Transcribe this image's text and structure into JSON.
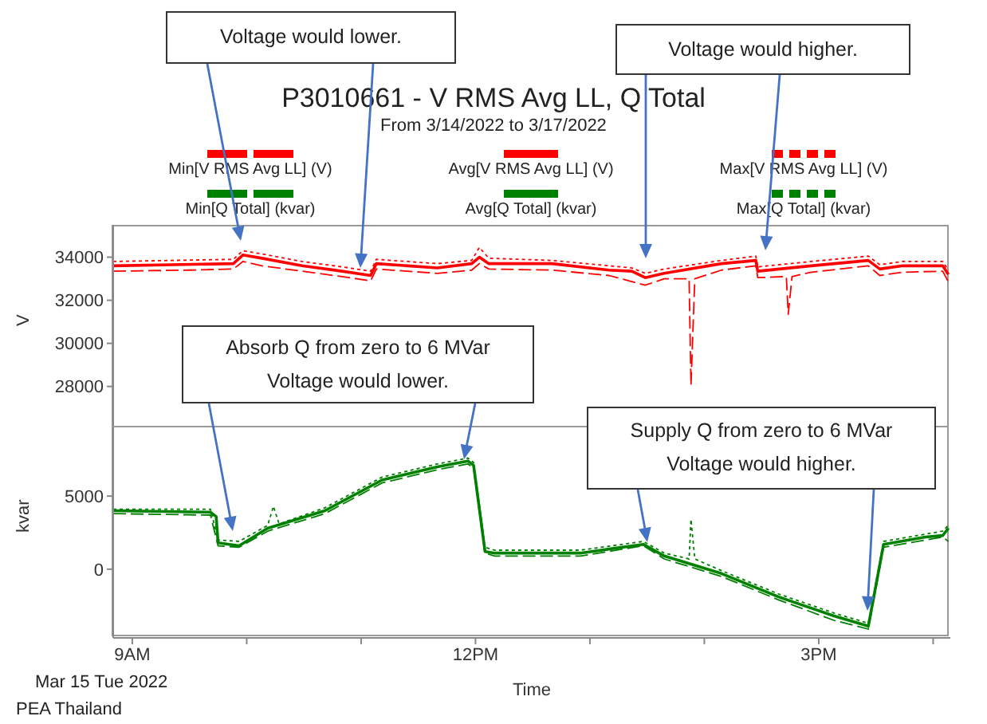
{
  "chart_data": [
    {
      "type": "line",
      "title": "P3010661 - V RMS Avg LL, Q Total",
      "subtitle": "From 3/14/2022 to 3/17/2022",
      "ylabel": "V",
      "legend": "top",
      "tick_labels": "y",
      "xlim": [
        "2022-03-15T08:50",
        "2022-03-15T16:09"
      ],
      "ylim": [
        26100,
        35500
      ],
      "yticks": [
        28000,
        30000,
        32000,
        34000
      ],
      "annotations": [
        "Voltage would lower.",
        "Voltage would higher."
      ],
      "series": [
        {
          "name": "Min[V RMS Avg LL] (V)",
          "color": "#ff0000",
          "line_style": "dashed",
          "x": [
            "2022-03-15T08:50",
            "2022-03-15T09:30",
            "2022-03-15T09:53",
            "2022-03-15T09:58",
            "2022-03-15T10:08",
            "2022-03-15T10:29",
            "2022-03-15T10:50",
            "2022-03-15T11:05",
            "2022-03-15T11:08",
            "2022-03-15T11:40",
            "2022-03-15T11:58",
            "2022-03-15T12:02",
            "2022-03-15T12:07",
            "2022-03-15T12:40",
            "2022-03-15T13:10",
            "2022-03-15T13:29",
            "2022-03-15T13:39",
            "2022-03-15T13:52",
            "2022-03-15T13:53",
            "2022-03-15T13:55",
            "2022-03-15T14:09",
            "2022-03-15T14:27",
            "2022-03-15T14:28",
            "2022-03-15T14:43",
            "2022-03-15T14:44",
            "2022-03-15T14:46",
            "2022-03-15T14:56",
            "2022-03-15T15:26",
            "2022-03-15T15:32",
            "2022-03-15T15:44",
            "2022-03-15T16:05",
            "2022-03-15T16:08"
          ],
          "values": [
            33350,
            33400,
            33450,
            33800,
            33600,
            33350,
            33100,
            32900,
            33450,
            33250,
            33400,
            33700,
            33450,
            33400,
            33150,
            32700,
            33000,
            33000,
            28050,
            33000,
            33400,
            33600,
            33050,
            33100,
            31350,
            33100,
            33300,
            33600,
            33150,
            33300,
            33350,
            32850
          ]
        },
        {
          "name": "Avg[V RMS Avg LL] (V)",
          "color": "#ff0000",
          "line_style": "solid",
          "x": [
            "2022-03-15T08:50",
            "2022-03-15T09:53",
            "2022-03-15T09:58",
            "2022-03-15T10:08",
            "2022-03-15T10:29",
            "2022-03-15T10:50",
            "2022-03-15T11:05",
            "2022-03-15T11:08",
            "2022-03-15T11:40",
            "2022-03-15T11:58",
            "2022-03-15T12:02",
            "2022-03-15T12:07",
            "2022-03-15T12:40",
            "2022-03-15T13:10",
            "2022-03-15T13:22",
            "2022-03-15T13:29",
            "2022-03-15T13:39",
            "2022-03-15T14:09",
            "2022-03-15T14:27",
            "2022-03-15T14:28",
            "2022-03-15T14:56",
            "2022-03-15T15:26",
            "2022-03-15T15:32",
            "2022-03-15T15:44",
            "2022-03-15T16:05",
            "2022-03-15T16:08"
          ],
          "values": [
            33600,
            33700,
            34100,
            33950,
            33600,
            33350,
            33150,
            33700,
            33500,
            33700,
            34000,
            33700,
            33700,
            33400,
            33350,
            33050,
            33250,
            33700,
            33850,
            33350,
            33600,
            33850,
            33450,
            33600,
            33600,
            33200
          ]
        },
        {
          "name": "Max[V RMS Avg LL] (V)",
          "color": "#ff0000",
          "line_style": "dotted",
          "x": [
            "2022-03-15T08:50",
            "2022-03-15T09:53",
            "2022-03-15T09:58",
            "2022-03-15T10:08",
            "2022-03-15T10:29",
            "2022-03-15T10:50",
            "2022-03-15T11:05",
            "2022-03-15T11:08",
            "2022-03-15T11:40",
            "2022-03-15T11:58",
            "2022-03-15T12:02",
            "2022-03-15T12:07",
            "2022-03-15T12:40",
            "2022-03-15T13:10",
            "2022-03-15T13:22",
            "2022-03-15T13:29",
            "2022-03-15T13:39",
            "2022-03-15T14:09",
            "2022-03-15T14:27",
            "2022-03-15T14:28",
            "2022-03-15T14:56",
            "2022-03-15T15:26",
            "2022-03-15T15:32",
            "2022-03-15T15:44",
            "2022-03-15T16:05",
            "2022-03-15T16:08"
          ],
          "values": [
            33800,
            33900,
            34300,
            34150,
            33800,
            33550,
            33350,
            33900,
            33700,
            33850,
            34450,
            33950,
            33850,
            33600,
            33500,
            33250,
            33450,
            33850,
            34050,
            33550,
            33800,
            34050,
            33650,
            33800,
            33800,
            33400
          ]
        }
      ]
    },
    {
      "type": "line",
      "xlabel": "Time",
      "ylabel": "kvar",
      "legend": "top",
      "xlim": [
        "2022-03-15T08:50",
        "2022-03-15T16:09"
      ],
      "ylim": [
        -4700,
        9700
      ],
      "yticks": [
        0,
        5000
      ],
      "xticks": [
        {
          "value": "2022-03-15T09:00",
          "label": "9AM"
        },
        {
          "value": "2022-03-15T10:00",
          "label": null
        },
        {
          "value": "2022-03-15T11:00",
          "label": null
        },
        {
          "value": "2022-03-15T12:00",
          "label": "12PM"
        },
        {
          "value": "2022-03-15T13:00",
          "label": null
        },
        {
          "value": "2022-03-15T14:00",
          "label": null
        },
        {
          "value": "2022-03-15T15:00",
          "label": "3PM"
        },
        {
          "value": "2022-03-15T16:00",
          "label": null
        }
      ],
      "annotations": [
        "Absorb Q from zero to 6 MVar\nVoltage would lower.",
        "Supply Q from zero to 6 MVar\nVoltage would higher.",
        "Mar 15 Tue 2022",
        "PEA Thailand"
      ],
      "series": [
        {
          "name": "Min[Q Total] (kvar)",
          "color": "#008000",
          "line_style": "dashed",
          "x": [
            "2022-03-15T08:50",
            "2022-03-15T09:41",
            "2022-03-15T09:45",
            "2022-03-15T09:56",
            "2022-03-15T10:11",
            "2022-03-15T10:41",
            "2022-03-15T11:11",
            "2022-03-15T11:40",
            "2022-03-15T11:56",
            "2022-03-15T11:59",
            "2022-03-15T12:05",
            "2022-03-15T12:10",
            "2022-03-15T12:55",
            "2022-03-15T13:28",
            "2022-03-15T13:39",
            "2022-03-15T14:09",
            "2022-03-15T14:39",
            "2022-03-15T15:08",
            "2022-03-15T15:26",
            "2022-03-15T15:34",
            "2022-03-15T15:56",
            "2022-03-15T16:05",
            "2022-03-15T16:08"
          ],
          "values": [
            3800,
            3700,
            1600,
            1500,
            2600,
            3800,
            5900,
            6800,
            7200,
            6900,
            1100,
            900,
            900,
            1600,
            700,
            -500,
            -2100,
            -3500,
            -4100,
            1500,
            2000,
            2200,
            1900
          ]
        },
        {
          "name": "Avg[Q Total] (kvar)",
          "color": "#008000",
          "line_style": "solid",
          "x": [
            "2022-03-15T08:50",
            "2022-03-15T09:41",
            "2022-03-15T09:44",
            "2022-03-15T09:45",
            "2022-03-15T09:56",
            "2022-03-15T10:11",
            "2022-03-15T10:41",
            "2022-03-15T11:11",
            "2022-03-15T11:40",
            "2022-03-15T11:56",
            "2022-03-15T11:59",
            "2022-03-15T12:05",
            "2022-03-15T12:10",
            "2022-03-15T12:55",
            "2022-03-15T13:28",
            "2022-03-15T13:39",
            "2022-03-15T14:09",
            "2022-03-15T14:39",
            "2022-03-15T15:08",
            "2022-03-15T15:26",
            "2022-03-15T15:34",
            "2022-03-15T15:56",
            "2022-03-15T16:05",
            "2022-03-15T16:08"
          ],
          "values": [
            4000,
            3900,
            3600,
            1800,
            1600,
            2800,
            4000,
            6100,
            7000,
            7400,
            7100,
            1200,
            1100,
            1100,
            1700,
            900,
            -300,
            -1900,
            -3200,
            -3900,
            1700,
            2200,
            2300,
            2800
          ]
        },
        {
          "name": "Max[Q Total] (kvar)",
          "color": "#008000",
          "line_style": "dotted",
          "x": [
            "2022-03-15T08:50",
            "2022-03-15T09:41",
            "2022-03-15T09:45",
            "2022-03-15T09:56",
            "2022-03-15T10:11",
            "2022-03-15T10:14",
            "2022-03-15T10:17",
            "2022-03-15T10:41",
            "2022-03-15T11:11",
            "2022-03-15T11:40",
            "2022-03-15T11:56",
            "2022-03-15T11:59",
            "2022-03-15T12:05",
            "2022-03-15T12:10",
            "2022-03-15T12:55",
            "2022-03-15T13:28",
            "2022-03-15T13:39",
            "2022-03-15T13:52",
            "2022-03-15T13:53",
            "2022-03-15T13:55",
            "2022-03-15T14:09",
            "2022-03-15T14:39",
            "2022-03-15T15:08",
            "2022-03-15T15:26",
            "2022-03-15T15:34",
            "2022-03-15T15:56",
            "2022-03-15T16:05",
            "2022-03-15T16:08"
          ],
          "values": [
            4100,
            4100,
            2000,
            1900,
            3000,
            4300,
            3100,
            4200,
            6300,
            7200,
            7600,
            7300,
            1500,
            1300,
            1300,
            1900,
            1100,
            700,
            3400,
            700,
            -100,
            -1700,
            -3000,
            -3700,
            1900,
            2400,
            2600,
            3000
          ]
        }
      ]
    }
  ]
}
